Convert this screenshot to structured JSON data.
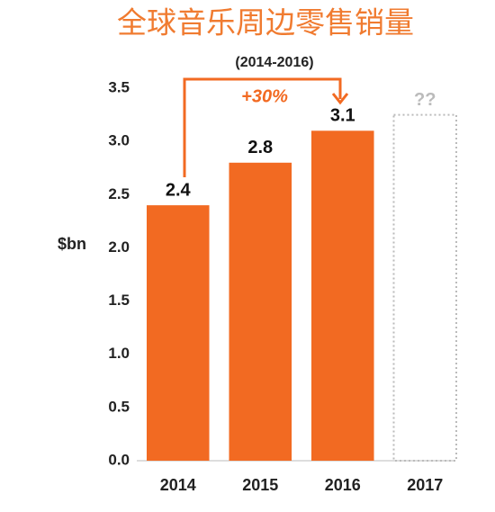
{
  "chart_data": {
    "type": "bar",
    "title": "全球音乐周边零售销量",
    "subtitle": "(2014-2016)",
    "y_label": "$bn",
    "categories": [
      "2014",
      "2015",
      "2016",
      "2017"
    ],
    "values": [
      2.4,
      2.8,
      3.1,
      null
    ],
    "color": "#f26a22",
    "placeholder": {
      "value": 3.25,
      "label": "??"
    },
    "annotation": "+30%",
    "ylim": [
      0,
      3.5
    ],
    "yticks": [
      {
        "value": 0,
        "label": "0.0"
      },
      {
        "value": 0.5,
        "label": "0.5"
      },
      {
        "value": 1,
        "label": "1.0"
      },
      {
        "value": 1.5,
        "label": "1.5"
      },
      {
        "value": 2,
        "label": "2.0"
      },
      {
        "value": 2.5,
        "label": "2.5"
      },
      {
        "value": 3,
        "label": "3.0"
      },
      {
        "value": 3.5,
        "label": "3.5"
      }
    ],
    "grid": false
  }
}
